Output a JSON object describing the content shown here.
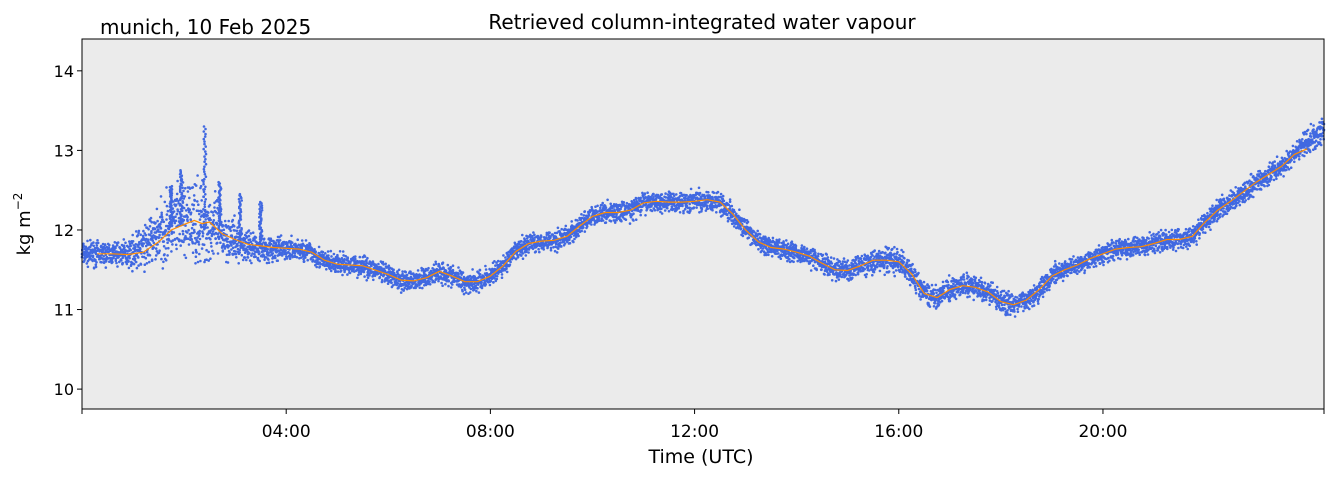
{
  "location_label": "munich, 10 Feb 2025",
  "colors": {
    "plot_background": "#ebebeb",
    "scatter_points": "#4169e1",
    "smoothed_line": "#ff8c00"
  },
  "chart_data": {
    "type": "line",
    "title": "Retrieved column-integrated water vapour",
    "xlabel": "Time (UTC)",
    "ylabel": "kg m",
    "ylabel_superscript": "−2",
    "xlim_hours": [
      0,
      24.33
    ],
    "ylim": [
      9.75,
      14.4
    ],
    "x_ticks": [
      {
        "hours": 0,
        "label": ""
      },
      {
        "hours": 4,
        "label": "04:00"
      },
      {
        "hours": 8,
        "label": "08:00"
      },
      {
        "hours": 12,
        "label": "12:00"
      },
      {
        "hours": 16,
        "label": "16:00"
      },
      {
        "hours": 20,
        "label": "20:00"
      },
      {
        "hours": 24.33,
        "label": ""
      }
    ],
    "y_ticks": [
      10,
      11,
      12,
      13,
      14
    ],
    "grid": false,
    "series": [
      {
        "kind": "scatter",
        "x_hours": [
          0.0,
          0.25,
          0.5,
          0.75,
          1.0,
          1.25,
          1.5,
          1.75,
          2.0,
          2.25,
          2.5,
          2.75,
          3.0,
          3.25,
          3.5,
          3.75,
          4.0,
          4.25,
          4.5,
          4.75,
          5.0,
          5.25,
          5.5,
          5.75,
          6.0,
          6.25,
          6.5,
          6.75,
          7.0,
          7.25,
          7.5,
          7.75,
          8.0,
          8.25,
          8.5,
          8.75,
          9.0,
          9.25,
          9.5,
          9.75,
          10.0,
          10.25,
          10.5,
          10.75,
          11.0,
          11.25,
          11.5,
          11.75,
          12.0,
          12.25,
          12.5,
          12.75,
          13.0,
          13.25,
          13.5,
          13.75,
          14.0,
          14.25,
          14.5,
          14.75,
          15.0,
          15.25,
          15.5,
          15.75,
          16.0,
          16.25,
          16.5,
          16.75,
          17.0,
          17.25,
          17.5,
          17.75,
          18.0,
          18.25,
          18.5,
          18.75,
          19.0,
          19.25,
          19.5,
          19.75,
          20.0,
          20.25,
          20.5,
          20.75,
          21.0,
          21.25,
          21.5,
          21.75,
          22.0,
          22.25,
          22.5,
          22.75,
          23.0,
          23.25,
          23.5,
          23.75,
          24.0,
          24.33
        ],
        "y_center": [
          11.7,
          11.7,
          11.7,
          11.7,
          11.72,
          11.8,
          11.95,
          12.05,
          12.1,
          12.1,
          12.05,
          11.95,
          11.85,
          11.8,
          11.78,
          11.75,
          11.76,
          11.75,
          11.72,
          11.6,
          11.57,
          11.56,
          11.55,
          11.5,
          11.42,
          11.37,
          11.36,
          11.4,
          11.48,
          11.42,
          11.35,
          11.35,
          11.42,
          11.55,
          11.73,
          11.83,
          11.86,
          11.87,
          11.92,
          12.05,
          12.17,
          12.22,
          12.22,
          12.25,
          12.34,
          12.36,
          12.35,
          12.35,
          12.36,
          12.38,
          12.35,
          12.2,
          12.0,
          11.85,
          11.78,
          11.76,
          11.72,
          11.67,
          11.58,
          11.5,
          11.49,
          11.55,
          11.62,
          11.62,
          11.6,
          11.45,
          11.2,
          11.15,
          11.25,
          11.3,
          11.28,
          11.22,
          11.1,
          11.06,
          11.12,
          11.25,
          11.42,
          11.5,
          11.56,
          11.64,
          11.7,
          11.76,
          11.78,
          11.79,
          11.83,
          11.88,
          11.88,
          11.92,
          12.1,
          12.25,
          12.36,
          12.48,
          12.6,
          12.7,
          12.8,
          12.95,
          13.1,
          13.25
        ],
        "spread": [
          0.15,
          0.15,
          0.15,
          0.15,
          0.2,
          0.3,
          0.4,
          0.45,
          0.5,
          0.55,
          0.45,
          0.35,
          0.25,
          0.2,
          0.18,
          0.15,
          0.14,
          0.14,
          0.14,
          0.14,
          0.13,
          0.13,
          0.13,
          0.13,
          0.13,
          0.13,
          0.13,
          0.13,
          0.14,
          0.14,
          0.14,
          0.14,
          0.14,
          0.14,
          0.13,
          0.13,
          0.13,
          0.13,
          0.13,
          0.13,
          0.13,
          0.13,
          0.13,
          0.13,
          0.13,
          0.13,
          0.13,
          0.13,
          0.14,
          0.14,
          0.14,
          0.14,
          0.13,
          0.13,
          0.13,
          0.13,
          0.13,
          0.13,
          0.13,
          0.13,
          0.13,
          0.14,
          0.15,
          0.17,
          0.17,
          0.15,
          0.14,
          0.14,
          0.14,
          0.14,
          0.14,
          0.14,
          0.14,
          0.14,
          0.14,
          0.14,
          0.13,
          0.13,
          0.13,
          0.13,
          0.13,
          0.13,
          0.13,
          0.13,
          0.13,
          0.13,
          0.13,
          0.13,
          0.13,
          0.13,
          0.13,
          0.13,
          0.13,
          0.13,
          0.13,
          0.14,
          0.15,
          0.16
        ],
        "spikes": [
          {
            "hours": 1.75,
            "value": 12.55
          },
          {
            "hours": 1.95,
            "value": 12.75
          },
          {
            "hours": 2.4,
            "value": 13.3
          },
          {
            "hours": 2.7,
            "value": 12.6
          },
          {
            "hours": 3.1,
            "value": 12.45
          },
          {
            "hours": 3.5,
            "value": 12.35
          }
        ]
      },
      {
        "kind": "line",
        "x_hours": [
          0.3,
          0.6,
          0.9,
          1.2,
          1.5,
          1.75,
          2.0,
          2.2,
          2.35,
          2.5,
          2.75,
          3.0,
          3.25,
          3.5,
          3.75,
          4.0,
          4.25,
          4.5,
          4.75,
          5.0,
          5.5,
          6.0,
          6.25,
          6.5,
          6.75,
          7.0,
          7.25,
          7.5,
          7.75,
          8.0,
          8.25,
          8.5,
          8.75,
          9.0,
          9.25,
          9.5,
          9.75,
          10.0,
          10.25,
          10.5,
          10.75,
          11.0,
          11.25,
          11.5,
          11.75,
          12.0,
          12.25,
          12.5,
          12.75,
          13.0,
          13.25,
          13.5,
          13.75,
          14.0,
          14.25,
          14.5,
          14.75,
          15.0,
          15.25,
          15.5,
          15.75,
          16.0,
          16.25,
          16.5,
          16.75,
          17.0,
          17.25,
          17.5,
          17.75,
          18.0,
          18.25,
          18.5,
          18.75,
          19.0,
          19.25,
          19.5,
          19.75,
          20.0,
          20.25,
          20.5,
          20.75,
          21.0,
          21.25,
          21.5,
          21.75,
          22.0,
          22.25,
          22.5,
          22.75,
          23.0,
          23.25,
          23.5,
          23.75,
          24.0
        ],
        "y": [
          11.7,
          11.7,
          11.69,
          11.72,
          11.85,
          12.0,
          12.07,
          12.12,
          12.08,
          12.1,
          11.95,
          11.88,
          11.82,
          11.8,
          11.78,
          11.77,
          11.76,
          11.72,
          11.62,
          11.57,
          11.55,
          11.44,
          11.37,
          11.36,
          11.4,
          11.48,
          11.42,
          11.35,
          11.35,
          11.42,
          11.55,
          11.73,
          11.83,
          11.86,
          11.87,
          11.92,
          12.05,
          12.17,
          12.22,
          12.22,
          12.25,
          12.34,
          12.36,
          12.35,
          12.35,
          12.36,
          12.38,
          12.35,
          12.2,
          12.0,
          11.85,
          11.78,
          11.76,
          11.72,
          11.67,
          11.58,
          11.5,
          11.49,
          11.55,
          11.62,
          11.62,
          11.6,
          11.45,
          11.2,
          11.15,
          11.25,
          11.3,
          11.28,
          11.22,
          11.1,
          11.06,
          11.12,
          11.25,
          11.42,
          11.5,
          11.56,
          11.64,
          11.7,
          11.76,
          11.78,
          11.79,
          11.83,
          11.88,
          11.88,
          11.92,
          12.1,
          12.25,
          12.36,
          12.48,
          12.6,
          12.7,
          12.8,
          12.95,
          13.02
        ]
      }
    ]
  }
}
